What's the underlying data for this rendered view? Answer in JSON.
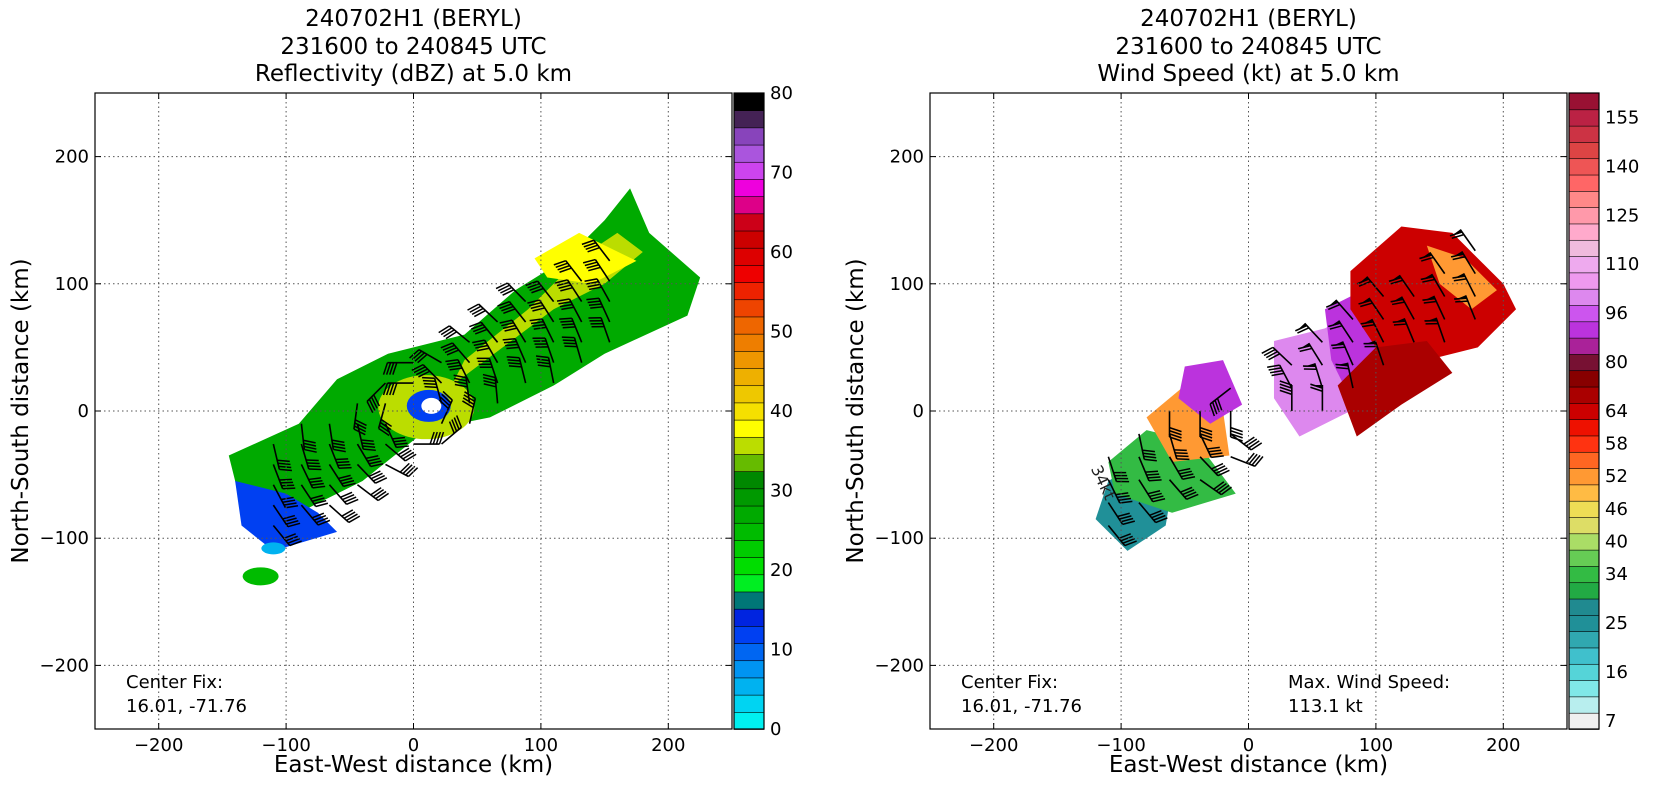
{
  "chart_data": [
    {
      "type": "heatmap",
      "title": [
        "240702H1 (BERYL)",
        "231600 to 240845 UTC",
        "Reflectivity (dBZ) at 5.0 km"
      ],
      "xlabel": "East-West distance (km)",
      "ylabel": "North-South distance (km)",
      "xlim": [
        -250,
        250
      ],
      "ylim": [
        -250,
        250
      ],
      "xticks": [
        -200,
        -100,
        0,
        100,
        200
      ],
      "yticks": [
        -200,
        -100,
        0,
        100,
        200
      ],
      "grid": true,
      "annotation": [
        "Center Fix:",
        "16.01, -71.76"
      ],
      "colorbar": {
        "min": 0,
        "max": 80,
        "ticks": [
          0,
          10,
          20,
          30,
          40,
          50,
          60,
          70,
          80
        ],
        "colors": [
          "#00f0f0",
          "#00d4f2",
          "#00b2f0",
          "#0094f2",
          "#0066f2",
          "#0040f2",
          "#0024e0",
          "#007777",
          "#00ee22",
          "#00dd00",
          "#00cc00",
          "#00bb00",
          "#00aa00",
          "#009900",
          "#008800",
          "#66bb00",
          "#bbdd00",
          "#ffff00",
          "#f5e000",
          "#eec800",
          "#eeb000",
          "#ee9600",
          "#ee7e00",
          "#ee6600",
          "#ee4400",
          "#ee2200",
          "#ee0000",
          "#dd0000",
          "#cc0000",
          "#cc0018",
          "#dd0088",
          "#ee00dd",
          "#cc44ee",
          "#aa55dd",
          "#8844bb",
          "#442255",
          "#000000"
        ]
      },
      "samples_dbz": [
        {
          "x": 170,
          "y": 130,
          "dbz": 36
        },
        {
          "x": 100,
          "y": 100,
          "dbz": 31
        },
        {
          "x": 30,
          "y": 25,
          "dbz": 34
        },
        {
          "x": 0,
          "y": 5,
          "dbz": 7
        },
        {
          "x": -40,
          "y": -30,
          "dbz": 26
        },
        {
          "x": -110,
          "y": -70,
          "dbz": 11
        },
        {
          "x": -120,
          "y": -130,
          "dbz": 25
        }
      ]
    },
    {
      "type": "heatmap",
      "title": [
        "240702H1 (BERYL)",
        "231600 to 240845 UTC",
        "Wind Speed (kt) at 5.0 km"
      ],
      "xlabel": "East-West distance (km)",
      "ylabel": "North-South distance (km)",
      "xlim": [
        -250,
        250
      ],
      "ylim": [
        -250,
        250
      ],
      "xticks": [
        -200,
        -100,
        0,
        100,
        200
      ],
      "yticks": [
        -200,
        -100,
        0,
        100,
        200
      ],
      "grid": true,
      "annotation": [
        "Center Fix:",
        "16.01, -71.76"
      ],
      "max_wind": [
        "Max. Wind Speed:",
        "113.1 kt"
      ],
      "contour_label": "34kt",
      "colorbar": {
        "ticks": [
          7,
          16,
          25,
          34,
          40,
          46,
          52,
          58,
          64,
          80,
          96,
          110,
          125,
          140,
          155
        ],
        "colors": [
          "#f0f0f0",
          "#b8eeee",
          "#80e8e8",
          "#55d4d8",
          "#40c0cc",
          "#30a8b0",
          "#209098",
          "#208a90",
          "#22aa44",
          "#33bb44",
          "#66cc55",
          "#aadd66",
          "#dddd66",
          "#eedd55",
          "#ffbb44",
          "#ff9933",
          "#ff6622",
          "#ff3311",
          "#ee1100",
          "#cc0000",
          "#aa0000",
          "#880000",
          "#771133",
          "#aa2299",
          "#bb33dd",
          "#cc55ee",
          "#dd88ee",
          "#ee99ee",
          "#eeaaee",
          "#f0bbdd",
          "#ffaacc",
          "#ff99aa",
          "#ff8888",
          "#ff6666",
          "#ee5555",
          "#dd4444",
          "#cc3344",
          "#bb2244",
          "#991133"
        ]
      }
    }
  ]
}
